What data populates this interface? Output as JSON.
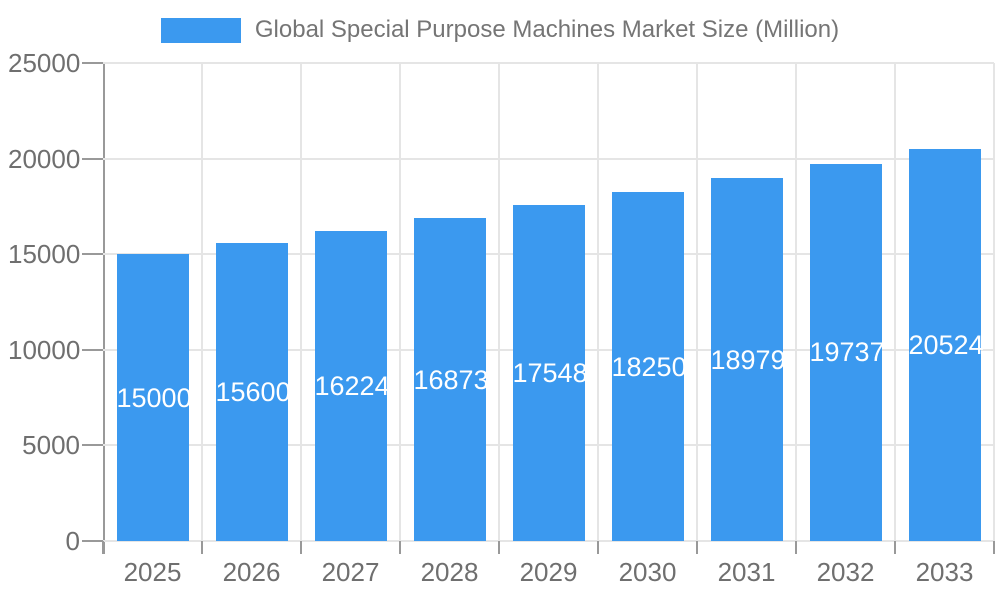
{
  "legend": {
    "label": "Global Special Purpose Machines Market Size (Million)",
    "swatch_color": "#3b99ef"
  },
  "chart_data": {
    "type": "bar",
    "title": "Global Special Purpose Machines Market Size (Million)",
    "categories": [
      "2025",
      "2026",
      "2027",
      "2028",
      "2029",
      "2030",
      "2031",
      "2032",
      "2033"
    ],
    "values": [
      15000,
      15600,
      16224,
      16873,
      17548,
      18250,
      18979,
      19737,
      20524
    ],
    "xlabel": "",
    "ylabel": "",
    "ylim": [
      0,
      25000
    ],
    "yticks": [
      0,
      5000,
      10000,
      15000,
      20000,
      25000
    ],
    "grid": true,
    "legend_position": "top-center",
    "bar_labels_inside": true
  },
  "colors": {
    "bar": "#3b99ef",
    "bar_label": "#ffffff",
    "grid": "#e5e5e5",
    "axis": "#999999",
    "tick_text": "#6f6f6f",
    "legend_text": "#757575",
    "background": "#ffffff"
  }
}
